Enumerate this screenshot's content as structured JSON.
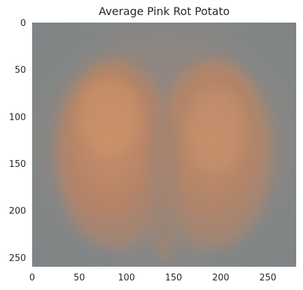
{
  "chart_data": {
    "type": "image",
    "title": "Average Pink Rot Potato",
    "xlabel": "",
    "ylabel": "",
    "image_width": 280,
    "image_height": 260,
    "xlim": [
      0,
      280
    ],
    "ylim": [
      260,
      0
    ],
    "x_ticks": [
      0,
      50,
      100,
      150,
      200,
      250
    ],
    "y_ticks": [
      0,
      50,
      100,
      150,
      200,
      250
    ],
    "grid": false,
    "colors": {
      "background": "#85898a",
      "potato_flesh": "#b4876b",
      "potato_highlight": "#c5916b",
      "center_seam": "#a18472"
    }
  }
}
